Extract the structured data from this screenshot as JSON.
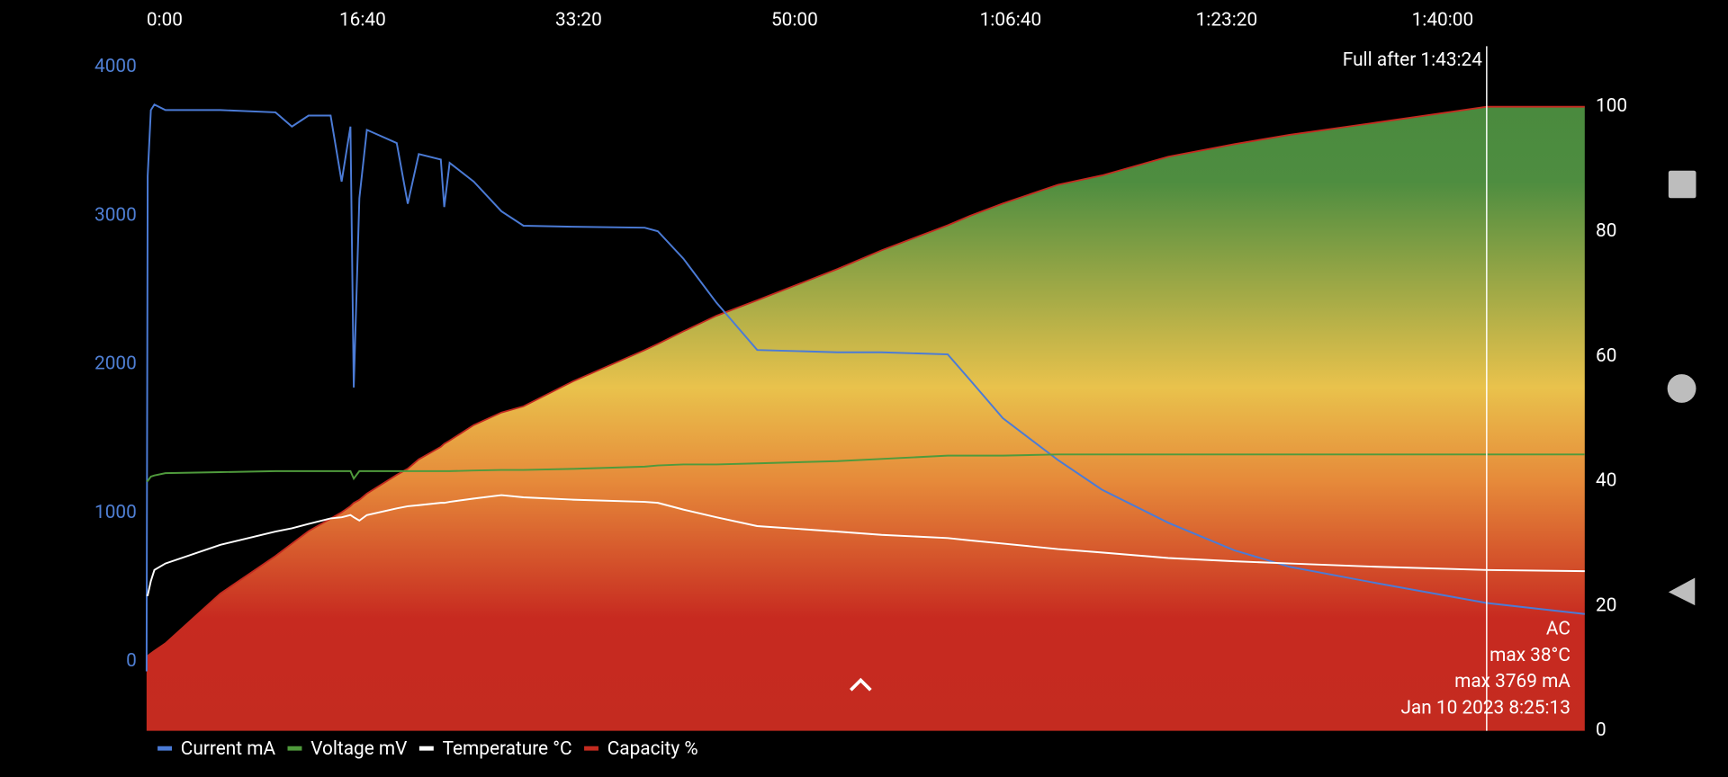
{
  "chart_data": {
    "type": "line",
    "x": [
      0,
      5,
      20,
      36,
      87,
      342,
      597,
      673,
      750,
      852,
      903,
      944,
      959,
      985,
      1020,
      1158,
      1209,
      1260,
      1362,
      1378,
      1403,
      1515,
      1643,
      1745,
      1974,
      2306,
      2367,
      2485,
      2638,
      2827,
      3199,
      3403,
      3709,
      3811,
      3964,
      4219,
      4423,
      4730,
      5036,
      5291,
      5699,
      6204,
      6658
    ],
    "xlim": [
      0,
      6658
    ],
    "xticks": [
      {
        "value": 0,
        "label": "0:00"
      },
      {
        "value": 1000,
        "label": "16:40"
      },
      {
        "value": 2000,
        "label": "33:20"
      },
      {
        "value": 3000,
        "label": "50:00"
      },
      {
        "value": 4000,
        "label": "1:06:40"
      },
      {
        "value": 5000,
        "label": "1:23:20"
      },
      {
        "value": 6000,
        "label": "1:40:00"
      }
    ],
    "ylim": [
      -467,
      4141
    ],
    "yticks": [
      0,
      1000,
      2000,
      3000,
      4000
    ],
    "y2lim": [
      0,
      109.7
    ],
    "y2ticks": [
      0,
      20,
      40,
      60,
      80,
      100
    ],
    "series": [
      {
        "name": "Current mA",
        "color": "#4b7bd6",
        "values": [
          -67,
          3267,
          3711,
          3748,
          3711,
          3711,
          3696,
          3600,
          3674,
          3674,
          3230,
          3600,
          1844,
          3119,
          3578,
          3489,
          3081,
          3415,
          3378,
          3059,
          3356,
          3230,
          3030,
          2933,
          2926,
          2919,
          2896,
          2711,
          2415,
          2096,
          2081,
          2081,
          2067,
          1896,
          1637,
          1356,
          1156,
          933,
          748,
          637,
          526,
          393,
          319
        ]
      },
      {
        "name": "Voltage mV",
        "color": "#4f9a3c",
        "values": [
          1215,
          1215,
          1244,
          1252,
          1267,
          1274,
          1281,
          1281,
          1281,
          1281,
          1281,
          1281,
          1230,
          1281,
          1281,
          1281,
          1281,
          1281,
          1281,
          1281,
          1281,
          1285,
          1289,
          1289,
          1296,
          1311,
          1319,
          1326,
          1326,
          1333,
          1348,
          1363,
          1385,
          1385,
          1385,
          1393,
          1393,
          1393,
          1393,
          1393,
          1393,
          1393,
          1393
        ]
      },
      {
        "name": "Temperature °C",
        "color": "#ffffff",
        "values": [
          444,
          444,
          541,
          615,
          659,
          785,
          874,
          896,
          926,
          963,
          970,
          985,
          970,
          948,
          985,
          1030,
          1044,
          1052,
          1067,
          1067,
          1074,
          1096,
          1119,
          1104,
          1089,
          1074,
          1067,
          1022,
          970,
          911,
          874,
          852,
          830,
          815,
          793,
          756,
          733,
          696,
          674,
          659,
          637,
          615,
          607
        ]
      },
      {
        "name": "Capacity %",
        "color": "#c42b20",
        "axis": "y2",
        "values": [
          12,
          12,
          12.4,
          12.8,
          14,
          22,
          28,
          30,
          32,
          34,
          35,
          36,
          36.5,
          37,
          38,
          41,
          42,
          43.5,
          45.5,
          46,
          46.5,
          49,
          51,
          52,
          56,
          61,
          62,
          64,
          66.5,
          69,
          74,
          77,
          81,
          82.5,
          84.5,
          87.5,
          89,
          92,
          94,
          95.5,
          97.5,
          100,
          100
        ]
      }
    ],
    "annotation": {
      "text": "Full after 1:43:24",
      "x": 6204
    },
    "info": [
      "AC",
      "max 38°C",
      "max 3769 mA",
      "Jan 10 2023 8:25:13"
    ]
  }
}
